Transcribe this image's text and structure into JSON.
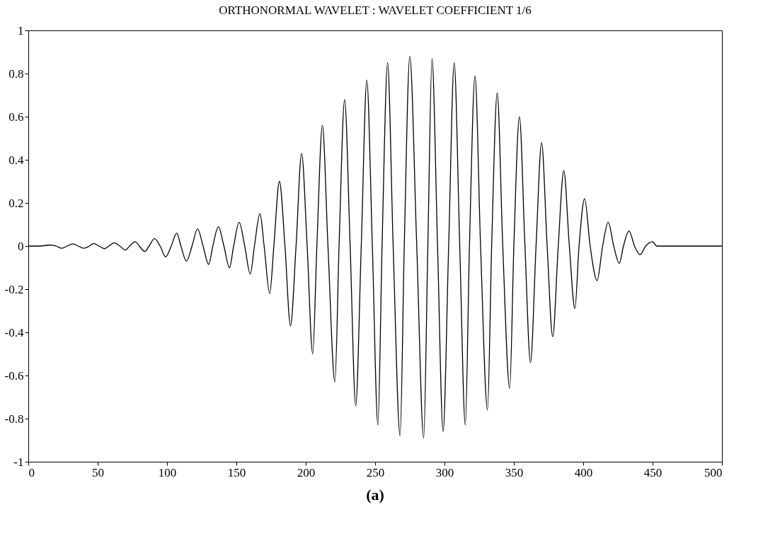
{
  "chart_data": {
    "type": "line",
    "title": "ORTHONORMAL WAVELET : WAVELET COEFFICIENT 1/6",
    "annotations": [
      "(a)"
    ],
    "series": [
      {
        "color": "#000000",
        "x": [
          0,
          8,
          16,
          20,
          24,
          28,
          32,
          36,
          40,
          44,
          47,
          51,
          55,
          58,
          62,
          66,
          70,
          73,
          77,
          80,
          84,
          87,
          91,
          95,
          99,
          103,
          107,
          110,
          114,
          118,
          122,
          126,
          130,
          133,
          137,
          141,
          145,
          148,
          152,
          156,
          160,
          163,
          167,
          170,
          174,
          177,
          181,
          185,
          189,
          193,
          197,
          201,
          205,
          208,
          212,
          216,
          221,
          224,
          228,
          232,
          236,
          240,
          244,
          248,
          252,
          255,
          259,
          263,
          268,
          271,
          275,
          280,
          285,
          288,
          291,
          295,
          299,
          303,
          307,
          311,
          315,
          318,
          322,
          326,
          331,
          334,
          338,
          342,
          347,
          350,
          354,
          358,
          362,
          366,
          370,
          374,
          378,
          382,
          386,
          390,
          394,
          397,
          401,
          405,
          410,
          414,
          418,
          422,
          426,
          429,
          433,
          437,
          441,
          445,
          450,
          453,
          500
        ],
        "values": [
          0,
          0,
          0.005,
          0,
          -0.01,
          0,
          0.01,
          0,
          -0.01,
          0,
          0.012,
          0,
          -0.012,
          0,
          0.015,
          0,
          -0.018,
          0,
          0.02,
          0,
          -0.025,
          0,
          0.035,
          0,
          -0.05,
          0,
          0.06,
          0,
          -0.07,
          0,
          0.08,
          0,
          -0.085,
          0,
          0.09,
          0,
          -0.1,
          0,
          0.11,
          0,
          -0.13,
          0,
          0.15,
          0,
          -0.22,
          0,
          0.3,
          0,
          -0.37,
          0,
          0.43,
          0,
          -0.5,
          0,
          0.56,
          0,
          -0.63,
          0,
          0.68,
          0,
          -0.74,
          0,
          0.77,
          0,
          -0.83,
          0,
          0.85,
          0,
          -0.88,
          0,
          0.88,
          0,
          -0.89,
          0,
          0.87,
          0,
          -0.86,
          0,
          0.85,
          0,
          -0.83,
          0,
          0.79,
          0,
          -0.76,
          0,
          0.71,
          0,
          -0.66,
          0,
          0.6,
          0,
          -0.54,
          0,
          0.48,
          0,
          -0.42,
          0,
          0.35,
          0,
          -0.29,
          0,
          0.22,
          0,
          -0.16,
          0,
          0.11,
          0,
          -0.08,
          0,
          0.07,
          0,
          -0.04,
          0,
          0.02,
          0,
          0
        ]
      }
    ],
    "xlim": [
      0,
      500
    ],
    "xticks": [
      0,
      50,
      100,
      150,
      200,
      250,
      300,
      350,
      400,
      450,
      500
    ],
    "ylim": [
      -1,
      1
    ],
    "yticks": [
      -1,
      -0.8,
      -0.6,
      -0.4,
      -0.2,
      0,
      0.2,
      0.4,
      0.6,
      0.8,
      1
    ],
    "grid": false,
    "marker": "none",
    "line_style": "solid"
  }
}
